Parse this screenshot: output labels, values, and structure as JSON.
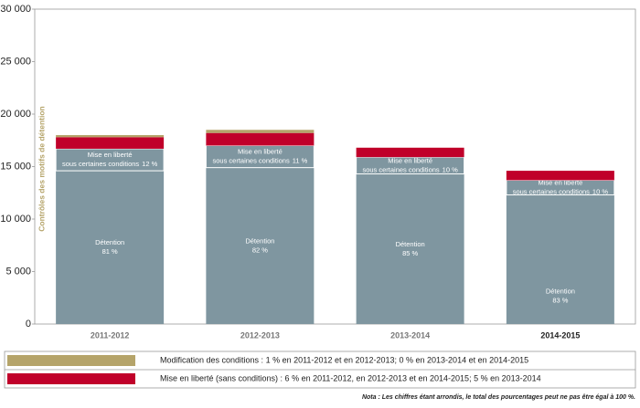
{
  "chart_data": {
    "type": "stacked-bar",
    "y_label": "Contrôles des motifs de détention",
    "categories": [
      "2011-2012",
      "2012-2013",
      "2013-2014",
      "2014-2015"
    ],
    "highlight_index": 3,
    "series": [
      {
        "name": "Détention",
        "color": "#7f96a0",
        "values": [
          14600,
          14900,
          14300,
          12300
        ],
        "share_labels": [
          "81 %",
          "82 %",
          "85 %",
          "83 %"
        ]
      },
      {
        "name": "Mise en liberté",
        "subname": "sous certaines conditions",
        "color": "#7f96a0",
        "values": [
          2100,
          2100,
          1600,
          1400
        ],
        "share_labels": [
          "12 %",
          "11 %",
          "10 %",
          "10 %"
        ]
      },
      {
        "name": "Mise en liberté (sans conditions) : 6 % en 2011-2012, en 2012-2013 et en 2014-2015; 5 % en 2013-2014",
        "color": "#c0002a",
        "values": [
          1100,
          1200,
          900,
          900
        ],
        "legend": true
      },
      {
        "name": "Modification des conditions : 1 % en 2011-2012 et en 2012-2013; 0 % en 2013-2014 et en 2014-2015",
        "color": "#b5a46a",
        "values": [
          200,
          300,
          0,
          0
        ],
        "legend": true
      }
    ],
    "ylim": [
      0,
      30000
    ],
    "yticks": [
      0,
      {
        "value": 5000,
        "label": "5 000"
      },
      {
        "value": 10000,
        "label": "10 000"
      },
      {
        "value": 15000,
        "label": "15 000"
      },
      {
        "value": 20000,
        "label": "20 000"
      },
      {
        "value": 25000,
        "label": "25 000"
      },
      {
        "value": 30000,
        "label": "30 000"
      }
    ],
    "note": "Nota : Les chiffres étant arrondis, le total des pourcentages peut ne pas être égal à 100 %."
  }
}
